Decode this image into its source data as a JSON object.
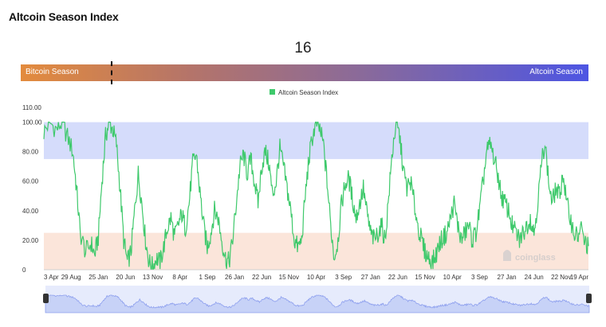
{
  "title": "Altcoin Season Index",
  "current_value": "16",
  "season_bar": {
    "left_label": "Bitcoin Season",
    "right_label": "Altcoin Season"
  },
  "watermark": "coinglass",
  "colors": {
    "line": "#3ec96b",
    "altcoin_zone": "#d5dcfb",
    "bitcoin_zone": "#fbe5da",
    "navigator": "#c7d2f7"
  },
  "chart_data": {
    "type": "line",
    "title": "",
    "legend": "top-center",
    "legend_entries": [
      "Altcoin Season Index"
    ],
    "ylim": [
      0,
      110
    ],
    "y_ticks": [
      "0",
      "20.00",
      "40.00",
      "60.00",
      "80.00",
      "100.00",
      "110.00"
    ],
    "x_ticks": [
      "3 Apr",
      "29 Aug",
      "25 Jan",
      "20 Jun",
      "13 Nov",
      "8 Apr",
      "1 Sep",
      "26 Jan",
      "22 Jun",
      "15 Nov",
      "10 Apr",
      "3 Sep",
      "27 Jan",
      "22 Jun",
      "15 Nov",
      "10 Apr",
      "3 Sep",
      "27 Jan",
      "24 Jun",
      "22 Nov",
      "19 Apr"
    ],
    "bands": [
      {
        "name": "Altcoin Season",
        "from": 75,
        "to": 100
      },
      {
        "name": "Bitcoin Season",
        "from": 0,
        "to": 25
      }
    ],
    "series": [
      {
        "name": "Altcoin Season Index",
        "points": [
          [
            0,
            93
          ],
          [
            0.3,
            100
          ],
          [
            0.7,
            95
          ],
          [
            1,
            100
          ],
          [
            1.3,
            90
          ],
          [
            1.6,
            80
          ],
          [
            1.8,
            55
          ],
          [
            2,
            25
          ],
          [
            2.3,
            12
          ],
          [
            2.6,
            18
          ],
          [
            2.8,
            10
          ],
          [
            3,
            22
          ],
          [
            3.2,
            60
          ],
          [
            3.4,
            90
          ],
          [
            3.6,
            100
          ],
          [
            3.8,
            95
          ],
          [
            4,
            85
          ],
          [
            4.2,
            55
          ],
          [
            4.4,
            20
          ],
          [
            4.6,
            5
          ],
          [
            4.8,
            12
          ],
          [
            5,
            40
          ],
          [
            5.2,
            65
          ],
          [
            5.4,
            45
          ],
          [
            5.6,
            20
          ],
          [
            5.8,
            5
          ],
          [
            6,
            2
          ],
          [
            6.2,
            8
          ],
          [
            6.4,
            5
          ],
          [
            6.6,
            15
          ],
          [
            6.8,
            28
          ],
          [
            7,
            35
          ],
          [
            7.2,
            22
          ],
          [
            7.4,
            30
          ],
          [
            7.6,
            38
          ],
          [
            7.8,
            28
          ],
          [
            8,
            45
          ],
          [
            8.2,
            72
          ],
          [
            8.4,
            78
          ],
          [
            8.6,
            52
          ],
          [
            8.8,
            30
          ],
          [
            9,
            15
          ],
          [
            9.2,
            25
          ],
          [
            9.4,
            40
          ],
          [
            9.6,
            35
          ],
          [
            9.8,
            20
          ],
          [
            10,
            8
          ],
          [
            10.2,
            5
          ],
          [
            10.4,
            20
          ],
          [
            10.6,
            45
          ],
          [
            10.8,
            70
          ],
          [
            11,
            78
          ],
          [
            11.2,
            65
          ],
          [
            11.4,
            75
          ],
          [
            11.6,
            60
          ],
          [
            11.8,
            45
          ],
          [
            12,
            70
          ],
          [
            12.2,
            80
          ],
          [
            12.4,
            72
          ],
          [
            12.6,
            50
          ],
          [
            12.8,
            60
          ],
          [
            13,
            82
          ],
          [
            13.2,
            70
          ],
          [
            13.4,
            55
          ],
          [
            13.6,
            40
          ],
          [
            13.8,
            20
          ],
          [
            14,
            15
          ],
          [
            14.2,
            20
          ],
          [
            14.4,
            50
          ],
          [
            14.6,
            75
          ],
          [
            14.8,
            90
          ],
          [
            15,
            100
          ],
          [
            15.2,
            95
          ],
          [
            15.4,
            85
          ],
          [
            15.6,
            60
          ],
          [
            15.8,
            30
          ],
          [
            16,
            8
          ],
          [
            16.2,
            20
          ],
          [
            16.4,
            45
          ],
          [
            16.6,
            58
          ],
          [
            16.8,
            62
          ],
          [
            17,
            48
          ],
          [
            17.2,
            35
          ],
          [
            17.4,
            45
          ],
          [
            17.6,
            55
          ],
          [
            17.8,
            38
          ],
          [
            18,
            25
          ],
          [
            18.2,
            20
          ],
          [
            18.4,
            25
          ],
          [
            18.6,
            30
          ],
          [
            18.8,
            20
          ],
          [
            19,
            50
          ],
          [
            19.2,
            80
          ],
          [
            19.4,
            100
          ],
          [
            19.6,
            90
          ],
          [
            19.8,
            68
          ],
          [
            20,
            55
          ],
          [
            20.2,
            60
          ],
          [
            20.4,
            45
          ],
          [
            20.6,
            30
          ],
          [
            20.8,
            20
          ],
          [
            21,
            12
          ],
          [
            21.2,
            8
          ],
          [
            21.4,
            5
          ],
          [
            21.6,
            10
          ],
          [
            21.8,
            18
          ],
          [
            22,
            22
          ],
          [
            22.2,
            25
          ],
          [
            22.4,
            35
          ],
          [
            22.6,
            45
          ],
          [
            22.8,
            30
          ],
          [
            23,
            20
          ],
          [
            23.2,
            25
          ],
          [
            23.4,
            30
          ],
          [
            23.6,
            20
          ],
          [
            23.8,
            25
          ],
          [
            24,
            40
          ],
          [
            24.2,
            60
          ],
          [
            24.4,
            80
          ],
          [
            24.6,
            85
          ],
          [
            24.8,
            75
          ],
          [
            25,
            65
          ],
          [
            25.2,
            50
          ],
          [
            25.4,
            45
          ],
          [
            25.6,
            40
          ],
          [
            25.8,
            30
          ],
          [
            26,
            25
          ],
          [
            26.2,
            20
          ],
          [
            26.4,
            25
          ],
          [
            26.6,
            30
          ],
          [
            26.8,
            35
          ],
          [
            27,
            25
          ],
          [
            27.2,
            45
          ],
          [
            27.4,
            70
          ],
          [
            27.6,
            88
          ],
          [
            27.8,
            60
          ],
          [
            28,
            45
          ],
          [
            28.2,
            55
          ],
          [
            28.4,
            50
          ],
          [
            28.6,
            65
          ],
          [
            28.8,
            45
          ],
          [
            29,
            35
          ],
          [
            29.2,
            25
          ],
          [
            29.4,
            22
          ],
          [
            29.6,
            28
          ],
          [
            29.8,
            18
          ],
          [
            30,
            16
          ]
        ]
      }
    ]
  }
}
